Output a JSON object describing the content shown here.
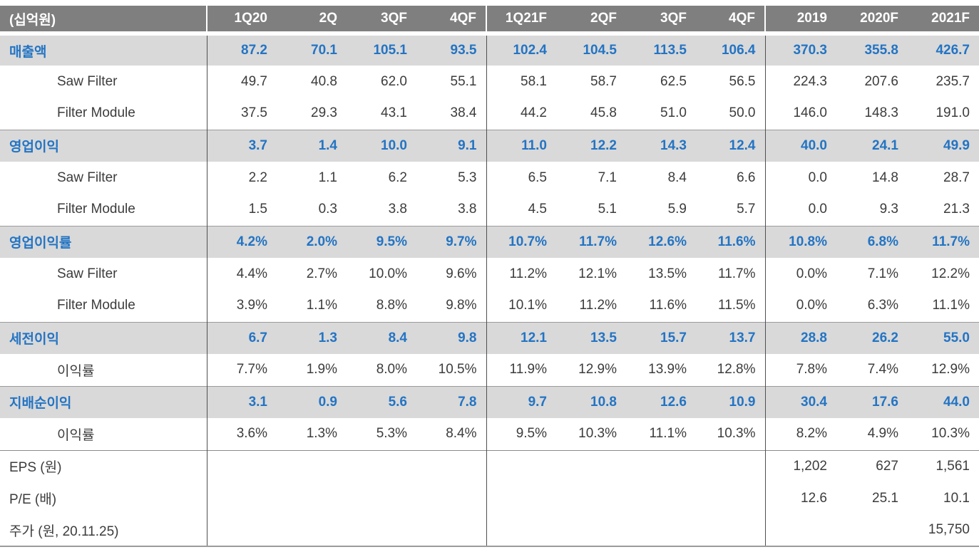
{
  "table": {
    "unit_label": "(십억원)",
    "columns": [
      "1Q20",
      "2Q",
      "3QF",
      "4QF",
      "1Q21F",
      "2QF",
      "3QF",
      "4QF",
      "2019",
      "2020F",
      "2021F"
    ],
    "colors": {
      "header_bg": "#7f7f7f",
      "header_text": "#ffffff",
      "section_row_bg": "#d9d9d9",
      "accent_blue": "#2374c4",
      "body_text": "#3c3c3c"
    },
    "rows": [
      {
        "label": "매출액",
        "type": "section",
        "values": [
          "87.2",
          "70.1",
          "105.1",
          "93.5",
          "102.4",
          "104.5",
          "113.5",
          "106.4",
          "370.3",
          "355.8",
          "426.7"
        ]
      },
      {
        "label": "Saw Filter",
        "type": "sub",
        "values": [
          "49.7",
          "40.8",
          "62.0",
          "55.1",
          "58.1",
          "58.7",
          "62.5",
          "56.5",
          "224.3",
          "207.6",
          "235.7"
        ]
      },
      {
        "label": "Filter Module",
        "type": "sub",
        "values": [
          "37.5",
          "29.3",
          "43.1",
          "38.4",
          "44.2",
          "45.8",
          "51.0",
          "50.0",
          "146.0",
          "148.3",
          "191.0"
        ]
      },
      {
        "label": "영업이익",
        "type": "section",
        "values": [
          "3.7",
          "1.4",
          "10.0",
          "9.1",
          "11.0",
          "12.2",
          "14.3",
          "12.4",
          "40.0",
          "24.1",
          "49.9"
        ]
      },
      {
        "label": "Saw Filter",
        "type": "sub",
        "values": [
          "2.2",
          "1.1",
          "6.2",
          "5.3",
          "6.5",
          "7.1",
          "8.4",
          "6.6",
          "0.0",
          "14.8",
          "28.7"
        ]
      },
      {
        "label": "Filter Module",
        "type": "sub",
        "values": [
          "1.5",
          "0.3",
          "3.8",
          "3.8",
          "4.5",
          "5.1",
          "5.9",
          "5.7",
          "0.0",
          "9.3",
          "21.3"
        ]
      },
      {
        "label": "영업이익률",
        "type": "section",
        "values": [
          "4.2%",
          "2.0%",
          "9.5%",
          "9.7%",
          "10.7%",
          "11.7%",
          "12.6%",
          "11.6%",
          "10.8%",
          "6.8%",
          "11.7%"
        ]
      },
      {
        "label": "Saw Filter",
        "type": "sub",
        "values": [
          "4.4%",
          "2.7%",
          "10.0%",
          "9.6%",
          "11.2%",
          "12.1%",
          "13.5%",
          "11.7%",
          "0.0%",
          "7.1%",
          "12.2%"
        ]
      },
      {
        "label": "Filter Module",
        "type": "sub",
        "values": [
          "3.9%",
          "1.1%",
          "8.8%",
          "9.8%",
          "10.1%",
          "11.2%",
          "11.6%",
          "11.5%",
          "0.0%",
          "6.3%",
          "11.1%"
        ]
      },
      {
        "label": "세전이익",
        "type": "section",
        "values": [
          "6.7",
          "1.3",
          "8.4",
          "9.8",
          "12.1",
          "13.5",
          "15.7",
          "13.7",
          "28.8",
          "26.2",
          "55.0"
        ]
      },
      {
        "label": "이익률",
        "type": "sub",
        "values": [
          "7.7%",
          "1.9%",
          "8.0%",
          "10.5%",
          "11.9%",
          "12.9%",
          "13.9%",
          "12.8%",
          "7.8%",
          "7.4%",
          "12.9%"
        ]
      },
      {
        "label": "지배순이익",
        "type": "section",
        "values": [
          "3.1",
          "0.9",
          "5.6",
          "7.8",
          "9.7",
          "10.8",
          "12.6",
          "10.9",
          "30.4",
          "17.6",
          "44.0"
        ]
      },
      {
        "label": "이익률",
        "type": "sub",
        "values": [
          "3.6%",
          "1.3%",
          "5.3%",
          "8.4%",
          "9.5%",
          "10.3%",
          "11.1%",
          "10.3%",
          "8.2%",
          "4.9%",
          "10.3%"
        ]
      },
      {
        "label": "EPS (원)",
        "type": "metric",
        "values": [
          "",
          "",
          "",
          "",
          "",
          "",
          "",
          "",
          "1,202",
          "627",
          "1,561"
        ]
      },
      {
        "label": "P/E (배)",
        "type": "metric",
        "values": [
          "",
          "",
          "",
          "",
          "",
          "",
          "",
          "",
          "12.6",
          "25.1",
          "10.1"
        ]
      },
      {
        "label": "주가 (원, 20.11.25)",
        "type": "metric",
        "values": [
          "",
          "",
          "",
          "",
          "",
          "",
          "",
          "",
          "",
          "",
          "15,750"
        ]
      }
    ]
  }
}
